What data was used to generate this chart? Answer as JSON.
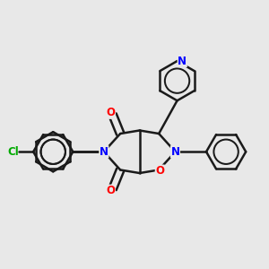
{
  "background_color": "#e8e8e8",
  "bond_color": "#1a1a1a",
  "N_color": "#0000ff",
  "O_color": "#ff0000",
  "Cl_color": "#00aa00",
  "lw": 1.8,
  "fs": 8.5,
  "fig_w": 3.0,
  "fig_h": 3.0,
  "dpi": 100,
  "xlim": [
    -1.3,
    1.3
  ],
  "ylim": [
    -1.2,
    1.4
  ]
}
